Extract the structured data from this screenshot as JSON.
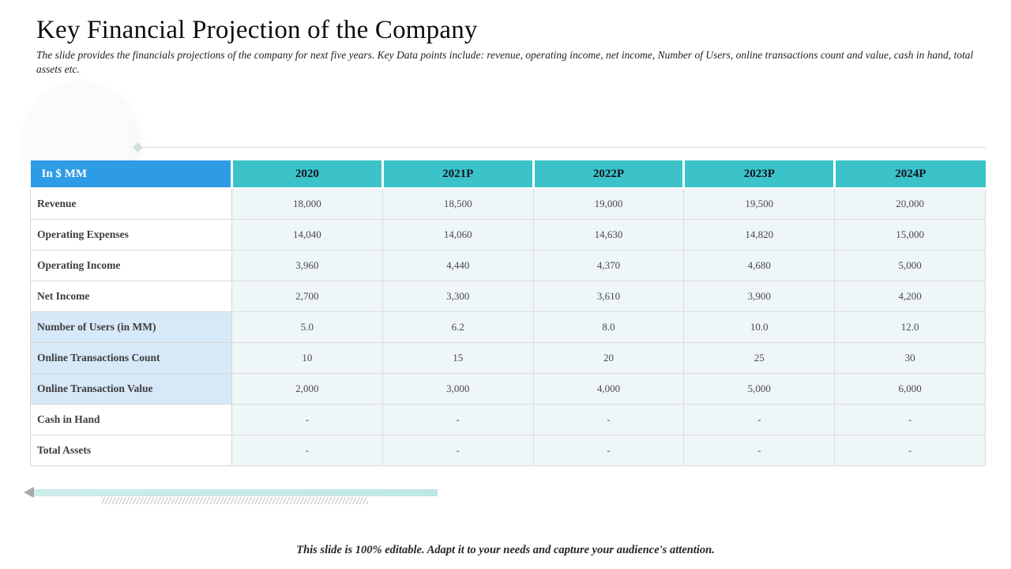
{
  "slide": {
    "title": "Key Financial Projection of the Company",
    "subtitle": "The slide provides the financials projections of the company for next five years. Key Data points include: revenue, operating income, net income, Number of Users, online transactions count and value, cash in hand, total assets etc.",
    "footer": "This slide is 100% editable. Adapt it to your needs and capture your audience's attention."
  },
  "chart_data": {
    "type": "table",
    "header": [
      "In $ MM",
      "2020",
      "2021P",
      "2022P",
      "2023P",
      "2024P"
    ],
    "rows": [
      {
        "label": "Revenue",
        "values": [
          "18,000",
          "18,500",
          "19,000",
          "19,500",
          "20,000"
        ],
        "highlight": false
      },
      {
        "label": "Operating Expenses",
        "values": [
          "14,040",
          "14,060",
          "14,630",
          "14,820",
          "15,000"
        ],
        "highlight": false
      },
      {
        "label": "Operating Income",
        "values": [
          "3,960",
          "4,440",
          "4,370",
          "4,680",
          "5,000"
        ],
        "highlight": false
      },
      {
        "label": "Net Income",
        "values": [
          "2,700",
          "3,300",
          "3,610",
          "3,900",
          "4,200"
        ],
        "highlight": false
      },
      {
        "label": "Number of Users (in MM)",
        "values": [
          "5.0",
          "6.2",
          "8.0",
          "10.0",
          "12.0"
        ],
        "highlight": true
      },
      {
        "label": "Online Transactions Count",
        "values": [
          "10",
          "15",
          "20",
          "25",
          "30"
        ],
        "highlight": true
      },
      {
        "label": "Online Transaction Value",
        "values": [
          "2,000",
          "3,000",
          "4,000",
          "5,000",
          "6,000"
        ],
        "highlight": true
      },
      {
        "label": "Cash in Hand",
        "values": [
          "-",
          "-",
          "-",
          "-",
          "-"
        ],
        "highlight": false
      },
      {
        "label": "Total Assets",
        "values": [
          "-",
          "-",
          "-",
          "-",
          "-"
        ],
        "highlight": false
      }
    ]
  },
  "colors": {
    "header_corner_blue": "#2e9be6",
    "header_year_teal": "#3bc3c9",
    "data_cell_bg": "#eef6f8",
    "highlight_label_bg": "#d7e8f8",
    "accent_bar_teal": "#bfe7e6"
  }
}
